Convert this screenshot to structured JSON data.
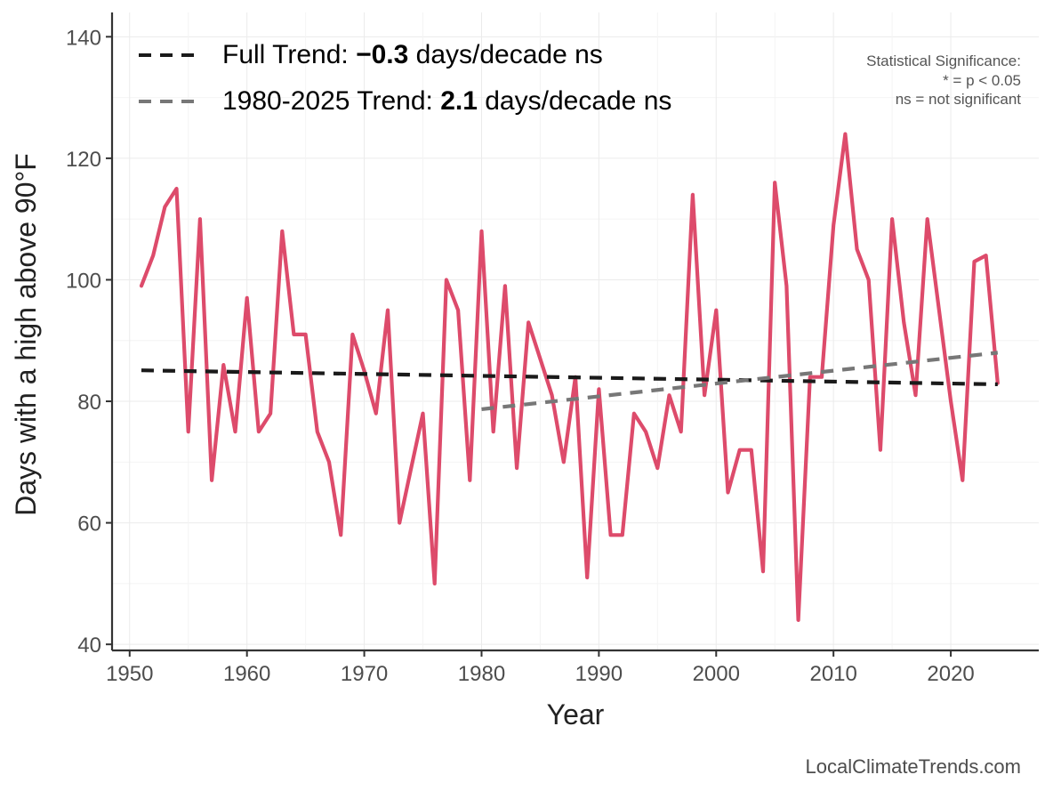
{
  "chart_data": {
    "type": "line",
    "xlabel": "Year",
    "ylabel": "Days with a high above 90°F",
    "xlim": [
      1948.5,
      2027.5
    ],
    "ylim": [
      39,
      144
    ],
    "x_ticks": [
      1950,
      1960,
      1970,
      1980,
      1990,
      2000,
      2010,
      2020
    ],
    "y_ticks": [
      40,
      60,
      80,
      100,
      120,
      140
    ],
    "grid": true,
    "series": [
      {
        "name": "Days above 90°F",
        "color": "#dd4b6b",
        "x": [
          1951,
          1952,
          1953,
          1954,
          1955,
          1956,
          1957,
          1958,
          1959,
          1960,
          1961,
          1962,
          1963,
          1964,
          1965,
          1966,
          1967,
          1968,
          1969,
          1970,
          1971,
          1972,
          1973,
          1974,
          1975,
          1976,
          1977,
          1978,
          1979,
          1980,
          1981,
          1982,
          1983,
          1984,
          1985,
          1986,
          1987,
          1988,
          1989,
          1990,
          1991,
          1992,
          1993,
          1994,
          1995,
          1996,
          1997,
          1998,
          1999,
          2000,
          2001,
          2002,
          2003,
          2004,
          2005,
          2006,
          2007,
          2008,
          2009,
          2010,
          2011,
          2012,
          2013,
          2014,
          2015,
          2016,
          2017,
          2018,
          2019,
          2020,
          2021,
          2022,
          2023,
          2024
        ],
        "values": [
          99,
          104,
          112,
          115,
          75,
          110,
          67,
          86,
          75,
          97,
          75,
          78,
          108,
          91,
          91,
          75,
          70,
          58,
          91,
          85,
          78,
          95,
          60,
          69,
          78,
          50,
          100,
          95,
          67,
          108,
          75,
          99,
          69,
          93,
          87,
          81,
          70,
          84,
          51,
          82,
          58,
          58,
          78,
          75,
          69,
          81,
          75,
          114,
          81,
          95,
          65,
          72,
          72,
          52,
          116,
          99,
          44,
          84,
          84,
          109,
          124,
          105,
          100,
          72,
          110,
          93,
          81,
          110,
          95,
          80,
          67,
          103,
          104,
          83
        ]
      }
    ],
    "trends": [
      {
        "name": "Full Trend",
        "color": "#1a1a1a",
        "x": [
          1951,
          2024
        ],
        "values": [
          85.1,
          82.8
        ]
      },
      {
        "name": "1980-2025 Trend",
        "color": "#777777",
        "x": [
          1980,
          2024
        ],
        "values": [
          78.7,
          88.0
        ]
      }
    ],
    "legend": {
      "position": "top-left",
      "items": [
        {
          "prefix": "Full Trend: ",
          "value": "−0.3",
          "suffix": " days/decade ns"
        },
        {
          "prefix": "1980-2025 Trend: ",
          "value": "2.1",
          "suffix": " days/decade ns"
        }
      ]
    },
    "significance_note": [
      "Statistical Significance:",
      "* = p < 0.05",
      "ns = not significant"
    ],
    "credit": "LocalClimateTrends.com"
  }
}
